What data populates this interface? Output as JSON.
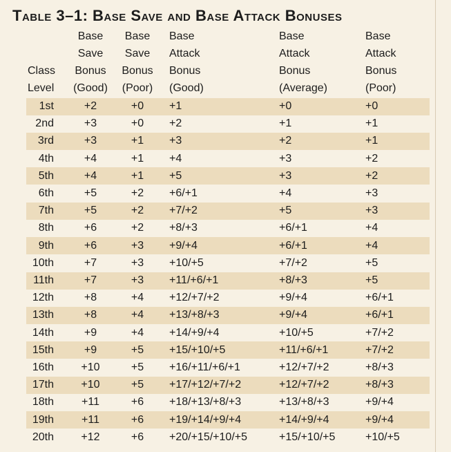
{
  "title": "Table 3–1: Base Save and Base Attack Bonuses",
  "table": {
    "columns": [
      [
        "Class",
        "Level"
      ],
      [
        "Base",
        "Save",
        "Bonus",
        "(Good)"
      ],
      [
        "Base",
        "Save",
        "Bonus",
        "(Poor)"
      ],
      [
        "Base",
        "Attack",
        "Bonus",
        "(Good)"
      ],
      [
        "Base",
        "Attack",
        "Bonus",
        "(Average)"
      ],
      [
        "Base",
        "Attack",
        "Bonus",
        "(Poor)"
      ]
    ],
    "rows": [
      [
        "1st",
        "+2",
        "+0",
        "+1",
        "+0",
        "+0"
      ],
      [
        "2nd",
        "+3",
        "+0",
        "+2",
        "+1",
        "+1"
      ],
      [
        "3rd",
        "+3",
        "+1",
        "+3",
        "+2",
        "+1"
      ],
      [
        "4th",
        "+4",
        "+1",
        "+4",
        "+3",
        "+2"
      ],
      [
        "5th",
        "+4",
        "+1",
        "+5",
        "+3",
        "+2"
      ],
      [
        "6th",
        "+5",
        "+2",
        "+6/+1",
        "+4",
        "+3"
      ],
      [
        "7th",
        "+5",
        "+2",
        "+7/+2",
        "+5",
        "+3"
      ],
      [
        "8th",
        "+6",
        "+2",
        "+8/+3",
        "+6/+1",
        "+4"
      ],
      [
        "9th",
        "+6",
        "+3",
        "+9/+4",
        "+6/+1",
        "+4"
      ],
      [
        "10th",
        "+7",
        "+3",
        "+10/+5",
        "+7/+2",
        "+5"
      ],
      [
        "11th",
        "+7",
        "+3",
        "+11/+6/+1",
        "+8/+3",
        "+5"
      ],
      [
        "12th",
        "+8",
        "+4",
        "+12/+7/+2",
        "+9/+4",
        "+6/+1"
      ],
      [
        "13th",
        "+8",
        "+4",
        "+13/+8/+3",
        "+9/+4",
        "+6/+1"
      ],
      [
        "14th",
        "+9",
        "+4",
        "+14/+9/+4",
        "+10/+5",
        "+7/+2"
      ],
      [
        "15th",
        "+9",
        "+5",
        "+15/+10/+5",
        "+11/+6/+1",
        "+7/+2"
      ],
      [
        "16th",
        "+10",
        "+5",
        "+16/+11/+6/+1",
        "+12/+7/+2",
        "+8/+3"
      ],
      [
        "17th",
        "+10",
        "+5",
        "+17/+12/+7/+2",
        "+12/+7/+2",
        "+8/+3"
      ],
      [
        "18th",
        "+11",
        "+6",
        "+18/+13/+8/+3",
        "+13/+8/+3",
        "+9/+4"
      ],
      [
        "19th",
        "+11",
        "+6",
        "+19/+14/+9/+4",
        "+14/+9/+4",
        "+9/+4"
      ],
      [
        "20th",
        "+12",
        "+6",
        "+20/+15/+10/+5",
        "+15/+10/+5",
        "+10/+5"
      ]
    ]
  }
}
